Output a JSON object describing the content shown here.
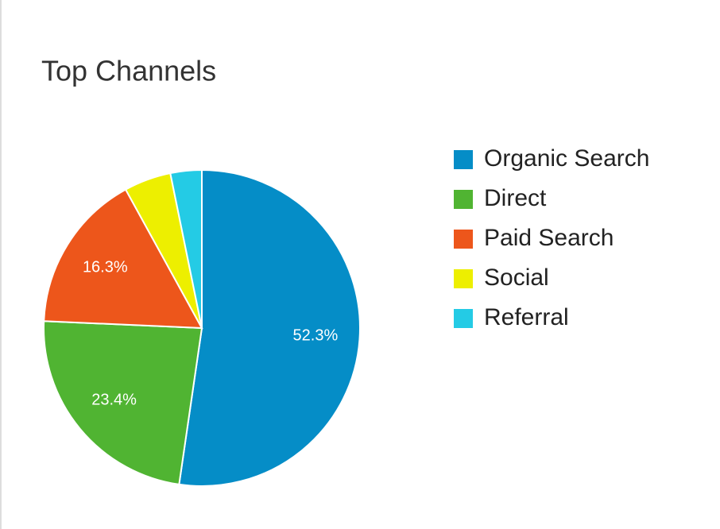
{
  "chart_data": {
    "type": "pie",
    "title": "Top Channels",
    "categories": [
      "Organic Search",
      "Direct",
      "Paid Search",
      "Social",
      "Referral"
    ],
    "values": [
      52.3,
      23.4,
      16.3,
      4.8,
      3.2
    ],
    "value_labels": [
      "52.3%",
      "23.4%",
      "16.3%",
      null,
      null
    ],
    "colors": [
      "#058dc7",
      "#50b432",
      "#ed561b",
      "#edef00",
      "#24cbe5"
    ],
    "legend": "right"
  }
}
